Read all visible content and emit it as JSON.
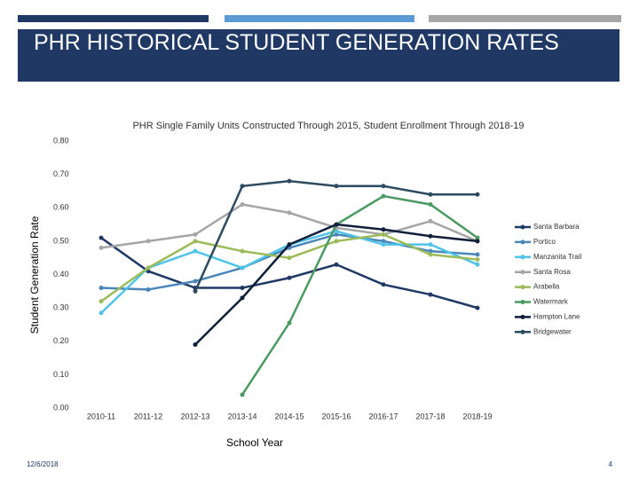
{
  "slide": {
    "title": "PHR HISTORICAL STUDENT GENERATION RATES",
    "date": "12/6/2018",
    "page_number": "4"
  },
  "chart_data": {
    "type": "line",
    "title": "PHR Single Family Units Constructed Through 2015, Student Enrollment Through 2018-19",
    "x_label": "School Year",
    "y_label": "Student Generation Rate",
    "categories": [
      "2010-11",
      "2011-12",
      "2012-13",
      "2013-14",
      "2014-15",
      "2015-16",
      "2016-17",
      "2017-18",
      "2018-19"
    ],
    "ylim": [
      0,
      0.8
    ],
    "yticks": [
      {
        "value": 0,
        "label": "0.00"
      },
      {
        "value": 0.1,
        "label": "0.10"
      },
      {
        "value": 0.2,
        "label": "0.20"
      },
      {
        "value": 0.3,
        "label": "0.30"
      },
      {
        "value": 0.4,
        "label": "0.40"
      },
      {
        "value": 0.5,
        "label": "0.50"
      },
      {
        "value": 0.6,
        "label": "0.60"
      },
      {
        "value": 0.7,
        "label": "0.70"
      },
      {
        "value": 0.8,
        "label": "0.80"
      }
    ],
    "grid": false,
    "legend": "right",
    "series": [
      {
        "name": "Santa Barbara",
        "color": "#1f3864",
        "values": [
          0.51,
          0.41,
          0.36,
          0.36,
          0.39,
          0.43,
          0.37,
          0.34,
          0.3
        ]
      },
      {
        "name": "Portico",
        "color": "#4a86b8",
        "values": [
          0.36,
          0.355,
          0.38,
          0.42,
          0.48,
          0.52,
          0.5,
          0.47,
          0.46
        ]
      },
      {
        "name": "Manzanita Trail",
        "color": "#4fc3e8",
        "values": [
          0.285,
          0.42,
          0.47,
          0.42,
          0.49,
          0.53,
          0.49,
          0.49,
          0.43
        ]
      },
      {
        "name": "Santa Rosa",
        "color": "#a6a6a6",
        "values": [
          0.48,
          0.5,
          0.52,
          0.61,
          0.585,
          0.54,
          0.52,
          0.56,
          0.5
        ]
      },
      {
        "name": "Arabella",
        "color": "#9bbb59",
        "values": [
          0.32,
          0.42,
          0.5,
          0.47,
          0.45,
          0.5,
          0.52,
          0.46,
          0.445
        ]
      },
      {
        "name": "Watermark",
        "color": "#4a9a62",
        "values": [
          null,
          null,
          null,
          0.04,
          0.255,
          0.55,
          0.635,
          0.61,
          0.51
        ]
      },
      {
        "name": "Hampton Lane",
        "color": "#0f1f3a",
        "values": [
          null,
          null,
          0.19,
          0.33,
          0.49,
          0.55,
          0.535,
          0.515,
          0.5
        ]
      },
      {
        "name": "Bridgewater",
        "color": "#2c4a60",
        "values": [
          null,
          null,
          0.35,
          0.665,
          0.68,
          0.665,
          0.665,
          0.64,
          0.64
        ]
      }
    ]
  }
}
